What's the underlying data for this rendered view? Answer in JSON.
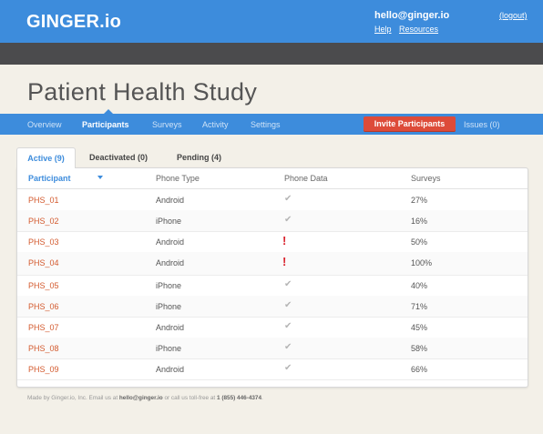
{
  "header": {
    "logo": "GINGER.io",
    "user_email": "hello@ginger.io",
    "logout": "(logout)",
    "help": "Help",
    "resources": "Resources"
  },
  "page": {
    "title": "Patient Health Study"
  },
  "nav": {
    "items": [
      {
        "label": "Overview",
        "active": false
      },
      {
        "label": "Participants",
        "active": true
      },
      {
        "label": "Surveys",
        "active": false
      },
      {
        "label": "Activity",
        "active": false
      },
      {
        "label": "Settings",
        "active": false
      }
    ],
    "invite_button": "Invite Participants",
    "issues": "Issues (0)"
  },
  "tabs": [
    {
      "label": "Active (9)",
      "active": true
    },
    {
      "label": "Deactivated (0)",
      "active": false
    },
    {
      "label": "Pending (4)",
      "active": false
    }
  ],
  "table": {
    "columns": [
      "Participant",
      "Phone Type",
      "Phone Data",
      "Surveys"
    ],
    "rows": [
      {
        "participant": "PHS_01",
        "phone_type": "Android",
        "phone_data": "ok",
        "surveys": "27%"
      },
      {
        "participant": "PHS_02",
        "phone_type": "iPhone",
        "phone_data": "ok",
        "surveys": "16%"
      },
      {
        "participant": "PHS_03",
        "phone_type": "Android",
        "phone_data": "alert",
        "surveys": "50%"
      },
      {
        "participant": "PHS_04",
        "phone_type": "Android",
        "phone_data": "alert",
        "surveys": "100%"
      },
      {
        "participant": "PHS_05",
        "phone_type": "iPhone",
        "phone_data": "ok",
        "surveys": "40%"
      },
      {
        "participant": "PHS_06",
        "phone_type": "iPhone",
        "phone_data": "ok",
        "surveys": "71%"
      },
      {
        "participant": "PHS_07",
        "phone_type": "Android",
        "phone_data": "ok",
        "surveys": "45%"
      },
      {
        "participant": "PHS_08",
        "phone_type": "iPhone",
        "phone_data": "ok",
        "surveys": "58%"
      },
      {
        "participant": "PHS_09",
        "phone_type": "Android",
        "phone_data": "ok",
        "surveys": "66%"
      }
    ]
  },
  "icons": {
    "ok": "check-icon",
    "alert": "exclamation-icon",
    "sort": "caret-down-icon"
  },
  "footer": {
    "text_1": "Made by Ginger.io, Inc. Email us at ",
    "email": "hello@ginger.io",
    "text_2": " or call us toll-free at ",
    "phone": "1 (855) 446-4374",
    "text_3": "."
  },
  "colors": {
    "brand_blue": "#3d8cdc",
    "accent_red": "#dd4b39",
    "link_orange": "#d35a2e"
  }
}
